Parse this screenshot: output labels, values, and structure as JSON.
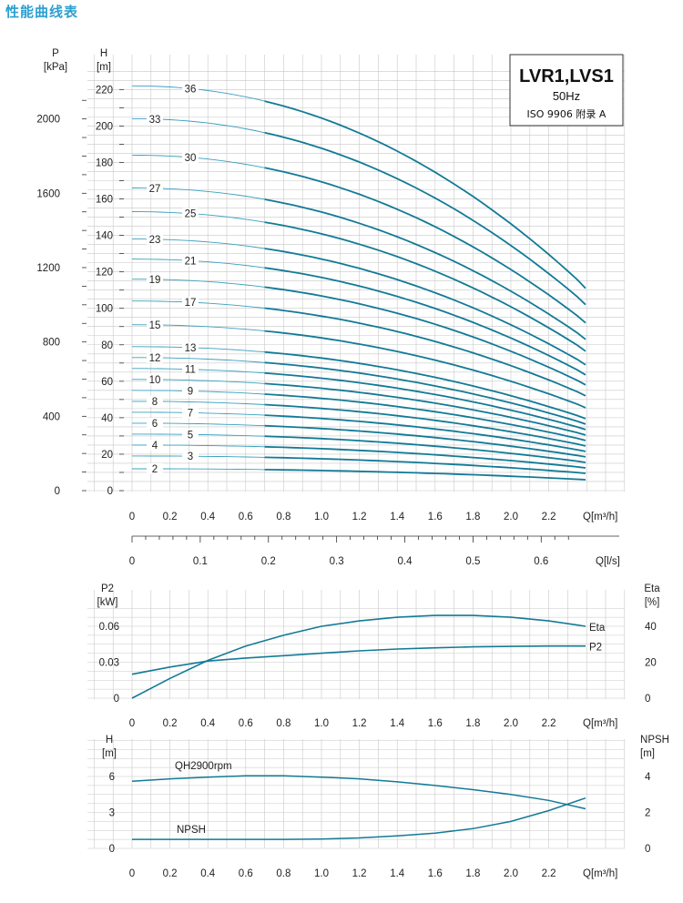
{
  "page_title": "性能曲线表",
  "info_box": {
    "model": "LVR1,LVS1",
    "frequency": "50Hz",
    "standard": "ISO 9906  附录 A"
  },
  "colors": {
    "curve": "#127a96",
    "curve_light": "#3aa0bf",
    "grid": "#c8c8c8",
    "title": "#2a9fd0"
  },
  "chart_data": [
    {
      "type": "line",
      "id": "head",
      "xlabel": "Q[m³/h]",
      "ylabel": "H",
      "yunit": "[m]",
      "ylabel2": "P",
      "yunit2": "[kPa]",
      "xlim": [
        0,
        2.4
      ],
      "ylim": [
        0,
        230
      ],
      "xticks": [
        "0",
        "0.2",
        "0.4",
        "0.6",
        "0.8",
        "1.0",
        "1.2",
        "1.4",
        "1.6",
        "1.8",
        "2.0",
        "2.2"
      ],
      "yticks": [
        "0",
        "20",
        "40",
        "60",
        "80",
        "100",
        "120",
        "140",
        "160",
        "180",
        "200",
        "220"
      ],
      "pticks": [
        "0",
        "400",
        "800",
        "1200",
        "1600",
        "2000"
      ],
      "pvalues": [
        0,
        400,
        800,
        1200,
        1600,
        2000
      ],
      "secondary_x": {
        "xlabel": "Q[l/s]",
        "ticks": [
          "0",
          "0.1",
          "0.2",
          "0.3",
          "0.4",
          "0.5",
          "0.6"
        ]
      },
      "stage_labels": [
        "36",
        "33",
        "30",
        "27",
        "25",
        "23",
        "21",
        "19",
        "17",
        "15",
        "13",
        "12",
        "11",
        "10",
        "9",
        "8",
        "7",
        "6",
        "5",
        "4",
        "3",
        "2"
      ],
      "series": [
        {
          "stages": 36,
          "shutoff_head": 222
        },
        {
          "stages": 33,
          "shutoff_head": 204
        },
        {
          "stages": 30,
          "shutoff_head": 184
        },
        {
          "stages": 27,
          "shutoff_head": 166
        },
        {
          "stages": 25,
          "shutoff_head": 153
        },
        {
          "stages": 23,
          "shutoff_head": 138
        },
        {
          "stages": 21,
          "shutoff_head": 127
        },
        {
          "stages": 19,
          "shutoff_head": 116
        },
        {
          "stages": 17,
          "shutoff_head": 104
        },
        {
          "stages": 15,
          "shutoff_head": 91
        },
        {
          "stages": 13,
          "shutoff_head": 79
        },
        {
          "stages": 12,
          "shutoff_head": 73
        },
        {
          "stages": 11,
          "shutoff_head": 67
        },
        {
          "stages": 10,
          "shutoff_head": 61
        },
        {
          "stages": 9,
          "shutoff_head": 55
        },
        {
          "stages": 8,
          "shutoff_head": 49
        },
        {
          "stages": 7,
          "shutoff_head": 43
        },
        {
          "stages": 6,
          "shutoff_head": 37
        },
        {
          "stages": 5,
          "shutoff_head": 31
        },
        {
          "stages": 4,
          "shutoff_head": 25
        },
        {
          "stages": 3,
          "shutoff_head": 19
        },
        {
          "stages": 2,
          "shutoff_head": 12
        }
      ],
      "end_flow": 2.4,
      "end_head_ratio": 0.5
    },
    {
      "type": "line",
      "id": "power",
      "xlabel": "Q[m³/h]",
      "ylabel": "P2",
      "yunit": "[kW]",
      "ylabel2": "Eta",
      "yunit2": "[%]",
      "xlim": [
        0,
        2.4
      ],
      "ylim": [
        0,
        0.08
      ],
      "xticks": [
        "0",
        "0.2",
        "0.4",
        "0.6",
        "0.8",
        "1.0",
        "1.2",
        "1.4",
        "1.6",
        "1.8",
        "2.0",
        "2.2"
      ],
      "yticks": [
        "0",
        "0.03",
        "0.06"
      ],
      "etaticks": [
        "0",
        "20",
        "40"
      ],
      "series": [
        {
          "name": "Eta",
          "x": [
            0,
            0.2,
            0.4,
            0.6,
            0.8,
            1.0,
            1.2,
            1.4,
            1.6,
            1.8,
            2.0,
            2.2,
            2.4
          ],
          "y": [
            0,
            11,
            21,
            29,
            35,
            40,
            43,
            45,
            46,
            46,
            45,
            43,
            40
          ],
          "axis": "right"
        },
        {
          "name": "P2",
          "x": [
            0,
            0.2,
            0.4,
            0.6,
            0.8,
            1.0,
            1.2,
            1.4,
            1.6,
            1.8,
            2.0,
            2.2,
            2.4
          ],
          "y": [
            0.02,
            0.026,
            0.031,
            0.0335,
            0.0355,
            0.0375,
            0.0395,
            0.041,
            0.042,
            0.0428,
            0.0432,
            0.0435,
            0.0435
          ],
          "axis": "left"
        }
      ]
    },
    {
      "type": "line",
      "id": "npsh",
      "xlabel": "Q[m³/h]",
      "ylabel": "H",
      "yunit": "[m]",
      "ylabel2": "NPSH",
      "yunit2": "[m]",
      "xlim": [
        0,
        2.4
      ],
      "ylim": [
        0,
        8
      ],
      "xticks": [
        "0",
        "0.2",
        "0.4",
        "0.6",
        "0.8",
        "1.0",
        "1.2",
        "1.4",
        "1.6",
        "1.8",
        "2.0",
        "2.2"
      ],
      "yticks": [
        "0",
        "3",
        "6"
      ],
      "npshticks": [
        "0",
        "2",
        "4"
      ],
      "series": [
        {
          "name": "QH2900rpm",
          "x": [
            0,
            0.2,
            0.4,
            0.6,
            0.8,
            1.0,
            1.2,
            1.4,
            1.6,
            1.8,
            2.0,
            2.2,
            2.4
          ],
          "y": [
            5.6,
            5.8,
            5.95,
            6.05,
            6.05,
            5.95,
            5.8,
            5.55,
            5.25,
            4.9,
            4.5,
            4.0,
            3.3
          ],
          "axis": "left"
        },
        {
          "name": "NPSH",
          "x": [
            0,
            0.2,
            0.4,
            0.6,
            0.8,
            1.0,
            1.2,
            1.4,
            1.6,
            1.8,
            2.0,
            2.2,
            2.4
          ],
          "y": [
            0.5,
            0.5,
            0.5,
            0.5,
            0.5,
            0.52,
            0.58,
            0.7,
            0.85,
            1.1,
            1.5,
            2.1,
            2.8
          ],
          "axis": "right"
        }
      ]
    }
  ]
}
